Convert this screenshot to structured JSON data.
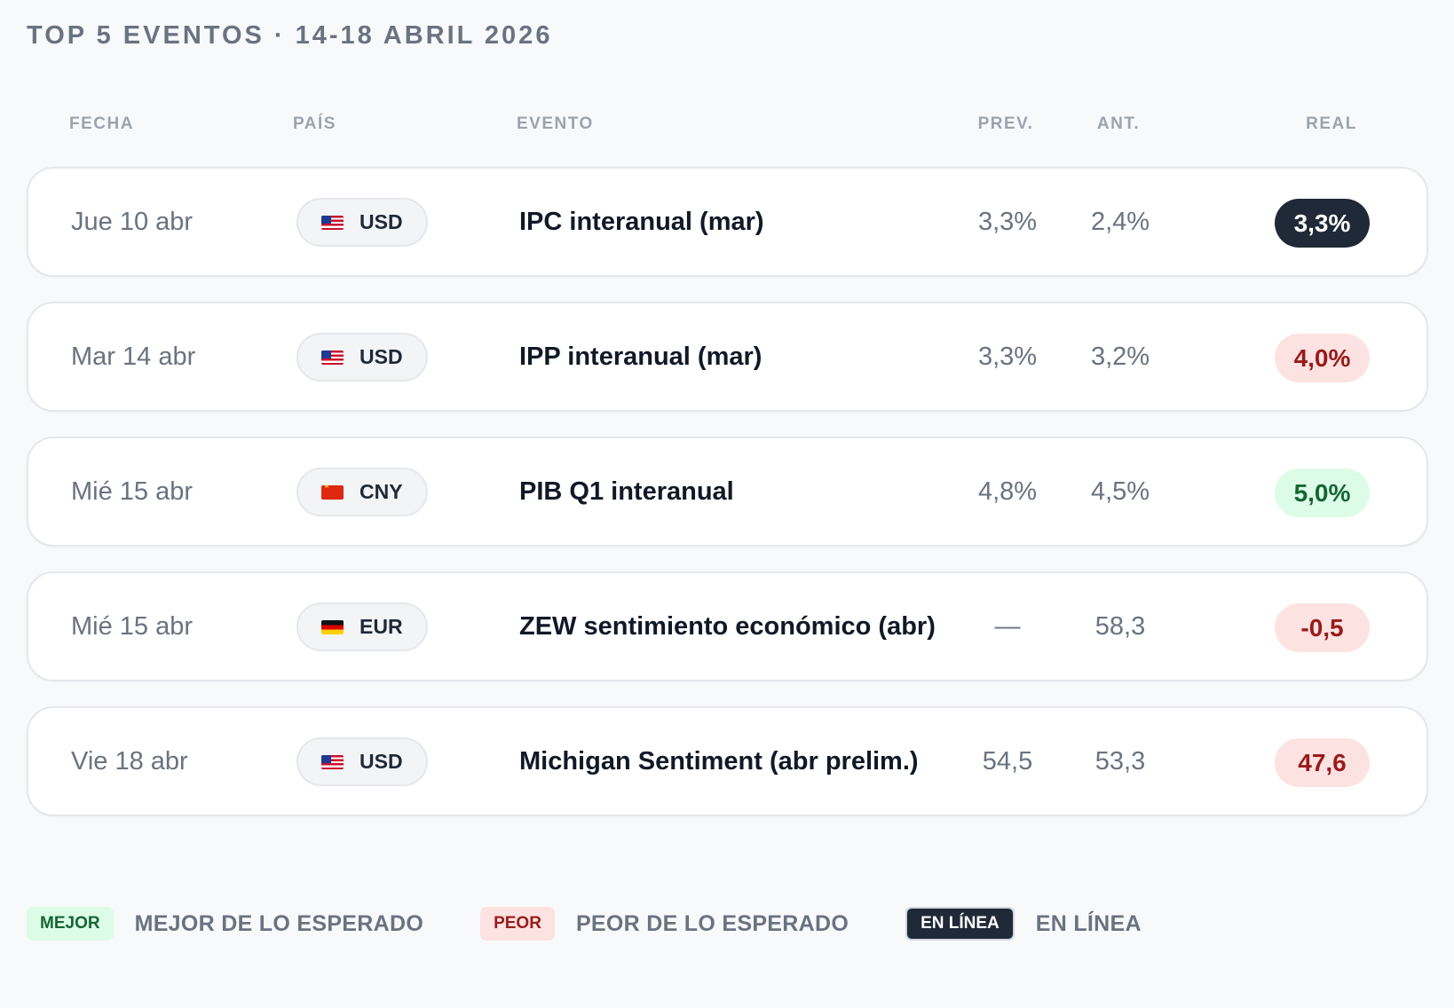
{
  "title": "TOP 5 EVENTOS · 14-18 ABRIL 2026",
  "columns": {
    "date": "FECHA",
    "country": "PAÍS",
    "event": "EVENTO",
    "prev": "PREV.",
    "ant": "ANT.",
    "real": "REAL"
  },
  "rows": [
    {
      "date": "Jue 10 abr",
      "flag_icon": "us-flag-icon",
      "currency": "USD",
      "event": "IPC interanual (mar)",
      "prev": "3,3%",
      "ant": "2,4%",
      "real": "3,3%",
      "status": "inline"
    },
    {
      "date": "Mar 14 abr",
      "flag_icon": "us-flag-icon",
      "currency": "USD",
      "event": "IPP interanual (mar)",
      "prev": "3,3%",
      "ant": "3,2%",
      "real": "4,0%",
      "status": "worse"
    },
    {
      "date": "Mié 15 abr",
      "flag_icon": "cn-flag-icon",
      "currency": "CNY",
      "event": "PIB Q1 interanual",
      "prev": "4,8%",
      "ant": "4,5%",
      "real": "5,0%",
      "status": "better"
    },
    {
      "date": "Mié 15 abr",
      "flag_icon": "de-flag-icon",
      "currency": "EUR",
      "event": "ZEW sentimiento económico (abr)",
      "prev": "—",
      "ant": "58,3",
      "real": "-0,5",
      "status": "worse"
    },
    {
      "date": "Vie 18 abr",
      "flag_icon": "us-flag-icon",
      "currency": "USD",
      "event": "Michigan Sentiment (abr prelim.)",
      "prev": "54,5",
      "ant": "53,3",
      "real": "47,6",
      "status": "worse"
    }
  ],
  "legend": [
    {
      "badge": "MEJOR",
      "label": "MEJOR DE LO ESPERADO",
      "status": "better"
    },
    {
      "badge": "PEOR",
      "label": "PEOR DE LO ESPERADO",
      "status": "worse"
    },
    {
      "badge": "EN LÍNEA",
      "label": "EN LÍNEA",
      "status": "inline"
    }
  ],
  "colors": {
    "better_bg": "#dcfce7",
    "better_text": "#166534",
    "worse_bg": "#fde2e2",
    "worse_text": "#991b1b",
    "inline_bg": "#1f2937",
    "inline_text": "#ffffff"
  }
}
